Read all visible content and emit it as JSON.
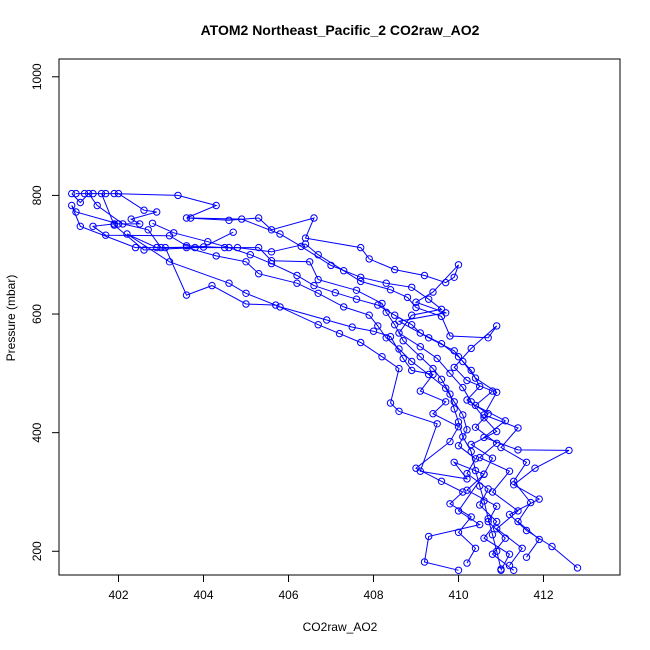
{
  "chart_data": {
    "type": "line",
    "title": "ATOM2 Northeast_Pacific_2 CO2raw_AO2",
    "xlabel": "CO2raw_AO2",
    "ylabel": "Pressure (mbar)",
    "xlim": [
      400.6,
      413.8
    ],
    "ylim": [
      1030,
      160
    ],
    "y_reversed": true,
    "x_ticks": [
      402,
      404,
      406,
      408,
      410,
      412
    ],
    "y_ticks": [
      200,
      400,
      600,
      800,
      1000
    ],
    "grid": false,
    "legend": "none",
    "line_color": "#0000ff",
    "series": [
      {
        "points": [
          [
            401.0,
            803
          ],
          [
            401.2,
            803
          ],
          [
            401.4,
            803
          ],
          [
            401.7,
            803
          ],
          [
            402.0,
            803
          ],
          [
            402.6,
            775
          ],
          [
            402.9,
            772
          ],
          [
            402.3,
            760
          ],
          [
            402.5,
            752
          ],
          [
            401.9,
            752
          ],
          [
            401.4,
            748
          ],
          [
            401.7,
            733
          ],
          [
            403.2,
            732
          ],
          [
            403.6,
            715
          ],
          [
            404.5,
            712
          ],
          [
            405.3,
            712
          ],
          [
            405.6,
            690
          ],
          [
            406.5,
            688
          ],
          [
            406.7,
            658
          ],
          [
            407.6,
            640
          ],
          [
            408.2,
            618
          ],
          [
            408.3,
            603
          ],
          [
            408.5,
            582
          ],
          [
            408.7,
            555
          ],
          [
            409.1,
            528
          ],
          [
            409.4,
            508
          ],
          [
            409.6,
            490
          ],
          [
            409.8,
            465
          ],
          [
            409.9,
            440
          ],
          [
            410.0,
            418
          ],
          [
            410.1,
            393
          ],
          [
            410.3,
            368
          ],
          [
            410.4,
            336
          ],
          [
            410.5,
            310
          ],
          [
            410.6,
            285
          ],
          [
            410.7,
            255
          ],
          [
            410.8,
            228
          ],
          [
            410.9,
            200
          ],
          [
            411.0,
            170
          ]
        ]
      },
      {
        "points": [
          [
            400.9,
            803
          ],
          [
            401.1,
            788
          ],
          [
            401.3,
            803
          ],
          [
            401.5,
            783
          ],
          [
            402.1,
            752
          ],
          [
            402.7,
            742
          ],
          [
            403.0,
            712
          ],
          [
            403.6,
            712
          ],
          [
            404.3,
            698
          ],
          [
            405.0,
            688
          ],
          [
            405.3,
            668
          ],
          [
            406.2,
            652
          ],
          [
            406.7,
            635
          ],
          [
            407.3,
            612
          ],
          [
            407.9,
            598
          ],
          [
            408.1,
            580
          ],
          [
            408.3,
            560
          ],
          [
            408.6,
            541
          ],
          [
            408.9,
            520
          ],
          [
            409.3,
            498
          ],
          [
            409.7,
            475
          ],
          [
            409.9,
            452
          ],
          [
            410.1,
            430
          ],
          [
            410.2,
            405
          ],
          [
            410.0,
            378
          ],
          [
            410.4,
            356
          ],
          [
            410.2,
            331
          ],
          [
            410.7,
            305
          ],
          [
            410.5,
            278
          ],
          [
            410.9,
            250
          ],
          [
            410.6,
            222
          ],
          [
            411.2,
            195
          ],
          [
            411.0,
            168
          ]
        ]
      },
      {
        "points": [
          [
            402.0,
            752
          ],
          [
            401.0,
            772
          ],
          [
            400.9,
            783
          ],
          [
            401.1,
            748
          ],
          [
            402.4,
            712
          ],
          [
            403.1,
            712
          ],
          [
            403.6,
            632
          ],
          [
            404.2,
            648
          ],
          [
            405.0,
            617
          ],
          [
            405.7,
            615
          ],
          [
            406.7,
            582
          ],
          [
            407.2,
            567
          ],
          [
            407.7,
            552
          ],
          [
            408.2,
            528
          ],
          [
            408.6,
            508
          ],
          [
            408.4,
            450
          ],
          [
            408.6,
            436
          ],
          [
            409.5,
            415
          ],
          [
            409.1,
            335
          ],
          [
            410.2,
            322
          ],
          [
            409.9,
            350
          ],
          [
            410.6,
            330
          ],
          [
            410.0,
            268
          ],
          [
            410.5,
            245
          ],
          [
            409.3,
            225
          ],
          [
            409.2,
            182
          ],
          [
            410.0,
            168
          ]
        ]
      },
      {
        "points": [
          [
            401.6,
            803
          ],
          [
            401.9,
            750
          ],
          [
            402.6,
            708
          ],
          [
            403.8,
            712
          ],
          [
            404.8,
            712
          ],
          [
            405.6,
            705
          ],
          [
            406.4,
            718
          ],
          [
            406.7,
            700
          ],
          [
            407.3,
            673
          ],
          [
            407.7,
            655
          ],
          [
            408.4,
            641
          ],
          [
            408.8,
            628
          ],
          [
            409.0,
            611
          ],
          [
            409.6,
            596
          ],
          [
            409.8,
            563
          ],
          [
            410.7,
            560
          ],
          [
            410.9,
            580
          ],
          [
            410.3,
            542
          ],
          [
            409.9,
            510
          ],
          [
            410.2,
            488
          ],
          [
            410.8,
            470
          ],
          [
            410.4,
            446
          ],
          [
            411.1,
            420
          ],
          [
            410.6,
            392
          ],
          [
            411.4,
            371
          ],
          [
            412.6,
            370
          ],
          [
            411.8,
            340
          ],
          [
            411.3,
            312
          ],
          [
            411.9,
            288
          ],
          [
            411.2,
            262
          ],
          [
            411.6,
            235
          ],
          [
            412.2,
            208
          ],
          [
            412.8,
            172
          ]
        ]
      },
      {
        "points": [
          [
            401.9,
            803
          ],
          [
            403.4,
            800
          ],
          [
            404.3,
            783
          ],
          [
            403.6,
            762
          ],
          [
            404.6,
            758
          ],
          [
            405.3,
            762
          ],
          [
            405.6,
            742
          ],
          [
            406.6,
            762
          ],
          [
            406.4,
            728
          ],
          [
            407.7,
            712
          ],
          [
            407.9,
            693
          ],
          [
            408.5,
            675
          ],
          [
            409.2,
            665
          ],
          [
            409.7,
            653
          ],
          [
            409.9,
            662
          ],
          [
            410.0,
            683
          ],
          [
            409.4,
            637
          ],
          [
            409.0,
            620
          ],
          [
            409.7,
            602
          ],
          [
            408.6,
            588
          ],
          [
            409.3,
            560
          ],
          [
            409.9,
            538
          ],
          [
            410.1,
            520
          ],
          [
            410.4,
            492
          ],
          [
            410.9,
            468
          ],
          [
            410.6,
            430
          ],
          [
            411.4,
            408
          ],
          [
            411.0,
            375
          ],
          [
            411.6,
            350
          ],
          [
            411.3,
            318
          ],
          [
            411.7,
            282
          ],
          [
            411.4,
            250
          ],
          [
            411.9,
            220
          ],
          [
            411.6,
            190
          ]
        ]
      },
      {
        "points": [
          [
            402.8,
            753
          ],
          [
            403.3,
            737
          ],
          [
            404.1,
            722
          ],
          [
            404.6,
            712
          ],
          [
            405.1,
            700
          ],
          [
            405.6,
            685
          ],
          [
            406.2,
            665
          ],
          [
            406.6,
            648
          ],
          [
            407.1,
            636
          ],
          [
            407.6,
            625
          ],
          [
            408.1,
            615
          ],
          [
            408.5,
            598
          ],
          [
            408.9,
            582
          ],
          [
            409.1,
            568
          ],
          [
            409.6,
            550
          ],
          [
            410.0,
            528
          ],
          [
            410.3,
            505
          ],
          [
            410.5,
            478
          ],
          [
            410.2,
            455
          ],
          [
            410.7,
            432
          ],
          [
            410.4,
            409
          ],
          [
            410.9,
            382
          ],
          [
            410.5,
            358
          ],
          [
            411.2,
            335
          ],
          [
            410.8,
            300
          ],
          [
            411.4,
            268
          ],
          [
            410.9,
            238
          ],
          [
            411.5,
            205
          ],
          [
            411.2,
            176
          ]
        ]
      },
      {
        "points": [
          [
            403.7,
            762
          ],
          [
            404.9,
            760
          ],
          [
            405.8,
            735
          ],
          [
            406.3,
            714
          ],
          [
            407.0,
            682
          ],
          [
            407.7,
            662
          ],
          [
            408.3,
            652
          ],
          [
            408.9,
            645
          ],
          [
            409.3,
            625
          ],
          [
            409.6,
            608
          ],
          [
            408.9,
            598
          ],
          [
            408.6,
            568
          ],
          [
            409.1,
            545
          ],
          [
            409.5,
            525
          ],
          [
            409.8,
            500
          ],
          [
            410.1,
            476
          ],
          [
            410.3,
            452
          ],
          [
            410.6,
            425
          ],
          [
            410.9,
            402
          ],
          [
            410.3,
            380
          ],
          [
            410.8,
            357
          ],
          [
            410.6,
            330
          ],
          [
            410.2,
            303
          ],
          [
            410.9,
            276
          ],
          [
            410.7,
            250
          ],
          [
            411.1,
            222
          ],
          [
            410.8,
            195
          ],
          [
            411.3,
            168
          ]
        ]
      },
      {
        "points": [
          [
            404.7,
            738
          ],
          [
            404.0,
            713
          ],
          [
            402.9,
            712
          ],
          [
            402.2,
            735
          ],
          [
            403.2,
            688
          ],
          [
            404.6,
            652
          ],
          [
            405.0,
            635
          ],
          [
            405.8,
            612
          ],
          [
            406.9,
            590
          ],
          [
            407.5,
            578
          ],
          [
            408.0,
            571
          ],
          [
            408.4,
            562
          ],
          [
            408.7,
            525
          ],
          [
            408.9,
            505
          ],
          [
            409.4,
            498
          ],
          [
            409.1,
            470
          ],
          [
            409.7,
            452
          ],
          [
            409.4,
            432
          ],
          [
            410.0,
            410
          ],
          [
            409.8,
            385
          ],
          [
            409.0,
            340
          ],
          [
            409.6,
            318
          ],
          [
            410.1,
            300
          ],
          [
            409.8,
            280
          ],
          [
            410.3,
            258
          ],
          [
            410.0,
            232
          ],
          [
            410.4,
            205
          ],
          [
            410.2,
            180
          ]
        ]
      }
    ]
  }
}
